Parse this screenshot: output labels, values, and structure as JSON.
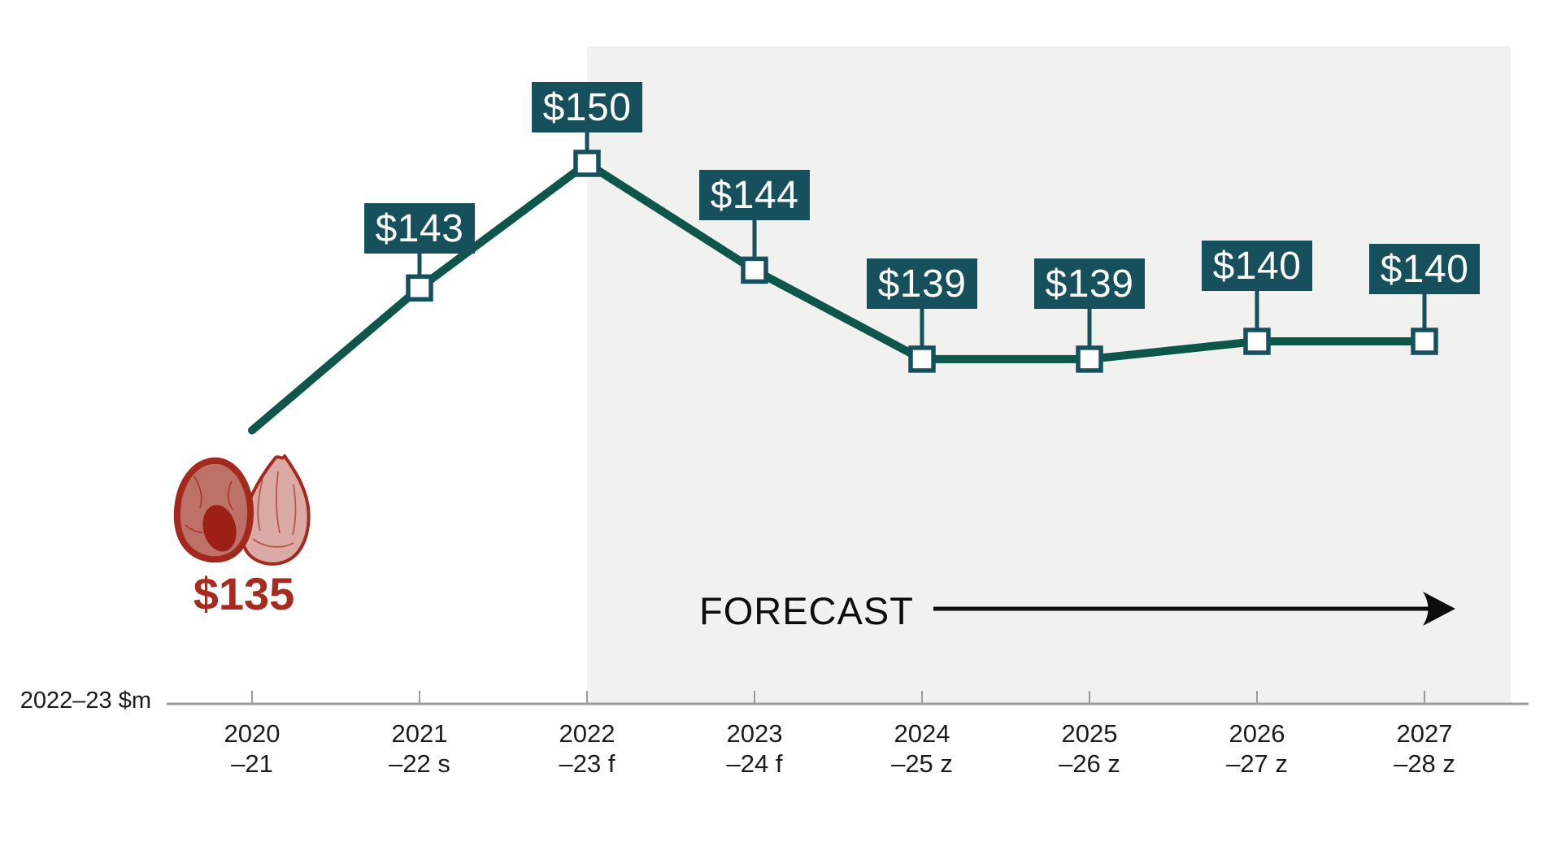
{
  "chart_data": {
    "type": "line",
    "title": "",
    "ylabel": "2022–23 $m",
    "forecast_label": "FORECAST",
    "forecast_region_starts_at": "2022–23 f",
    "categories": [
      "2020–21",
      "2021–22 s",
      "2022–23 f",
      "2023–24 f",
      "2024–25 z",
      "2025–26 z",
      "2026–27 z",
      "2027–28 z"
    ],
    "values": [
      135,
      143,
      150,
      144,
      139,
      139,
      140,
      140
    ],
    "points": [
      {
        "category": "2020–21",
        "tick_line1": "2020",
        "tick_line2": "–21",
        "value": 135,
        "label": "$135",
        "label_style": "red-text",
        "marker": false
      },
      {
        "category": "2021–22 s",
        "tick_line1": "2021",
        "tick_line2": "–22 s",
        "value": 143,
        "label": "$143",
        "label_style": "box",
        "marker": true
      },
      {
        "category": "2022–23 f",
        "tick_line1": "2022",
        "tick_line2": "–23 f",
        "value": 150,
        "label": "$150",
        "label_style": "box",
        "marker": true
      },
      {
        "category": "2023–24 f",
        "tick_line1": "2023",
        "tick_line2": "–24 f",
        "value": 144,
        "label": "$144",
        "label_style": "box",
        "marker": true
      },
      {
        "category": "2024–25 z",
        "tick_line1": "2024",
        "tick_line2": "–25 z",
        "value": 139,
        "label": "$139",
        "label_style": "box",
        "marker": true
      },
      {
        "category": "2025–26 z",
        "tick_line1": "2025",
        "tick_line2": "–26 z",
        "value": 139,
        "label": "$139",
        "label_style": "box",
        "marker": true
      },
      {
        "category": "2026–27 z",
        "tick_line1": "2026",
        "tick_line2": "–27 z",
        "value": 140,
        "label": "$140",
        "label_style": "box",
        "marker": true
      },
      {
        "category": "2027–28 z",
        "tick_line1": "2027",
        "tick_line2": "–28 z",
        "value": 140,
        "label": "$140",
        "label_style": "box",
        "marker": true
      }
    ],
    "colors": {
      "line": "#0e564a",
      "label_box": "#15505c",
      "label_text": "#ffffff",
      "marker_fill": "#ffffff",
      "highlight_red": "#a62b1e",
      "forecast_region": "#f1f1ef",
      "axis": "#9b9b9b",
      "tick_text": "#1c1c1c",
      "forecast_text": "#0d0d0d"
    },
    "legend_position": "none",
    "grid": "off"
  }
}
